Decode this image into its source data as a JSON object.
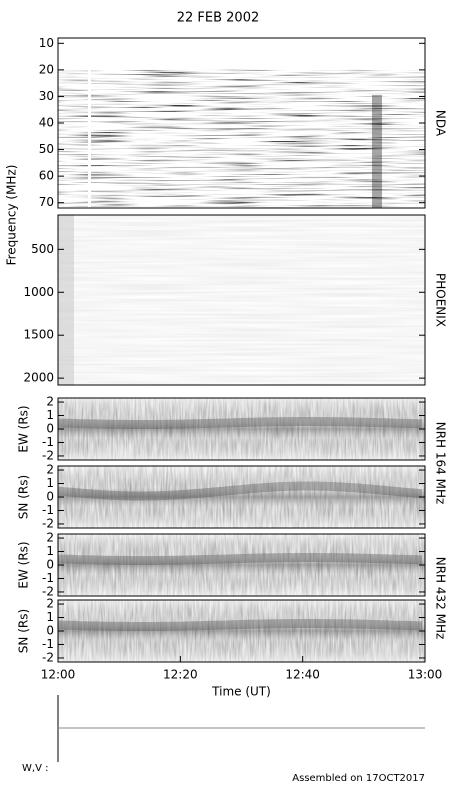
{
  "title": "22 FEB 2002",
  "wv_label": "W,V :",
  "footer": "Assembled on 17OCT2017",
  "chart_data": [
    {
      "type": "spectrogram",
      "ylabel": "Frequency (MHz)",
      "side_label": "NDA",
      "y_inverted": true,
      "ylim": [
        8,
        72
      ],
      "yticks": [
        10,
        20,
        30,
        40,
        50,
        60,
        70
      ]
    },
    {
      "type": "spectrogram",
      "side_label": "PHOENIX",
      "y_inverted": true,
      "ylim": [
        100,
        2080
      ],
      "yticks": [
        500,
        1000,
        1500,
        2000
      ]
    },
    {
      "type": "spectrogram",
      "ylabel": "EW (Rs)",
      "side_label": "NRH 164 MHz",
      "ylim": [
        -2.3,
        2.3
      ],
      "yticks": [
        -2,
        -1,
        0,
        1,
        2
      ]
    },
    {
      "type": "spectrogram",
      "ylabel": "SN (Rs)",
      "ylim": [
        -2.3,
        2.3
      ],
      "yticks": [
        -2,
        -1,
        0,
        1,
        2
      ]
    },
    {
      "type": "spectrogram",
      "ylabel": "EW (Rs)",
      "side_label": "NRH 432 MHz",
      "ylim": [
        -2.3,
        2.3
      ],
      "yticks": [
        -2,
        -1,
        0,
        1,
        2
      ]
    },
    {
      "type": "spectrogram",
      "ylabel": "SN (Rs)",
      "ylim": [
        -2.3,
        2.3
      ],
      "yticks": [
        -2,
        -1,
        0,
        1,
        2
      ],
      "xlabel": "Time (UT)",
      "xlim": [
        "12:00",
        "13:00"
      ],
      "xticks": [
        "12:00",
        "12:20",
        "12:40",
        "13:00"
      ]
    }
  ]
}
